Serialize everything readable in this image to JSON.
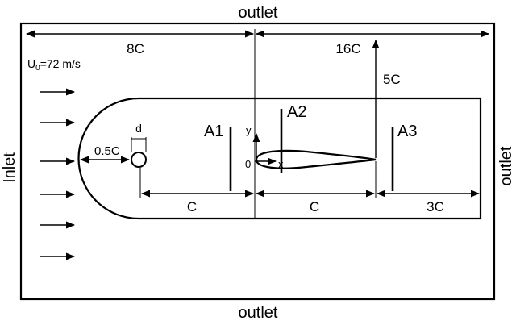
{
  "labels": {
    "outlet_top": "outlet",
    "outlet_bottom": "outlet",
    "outlet_right": "outlet",
    "inlet": "Inlet",
    "velocity_u": "U",
    "velocity_sub": "0",
    "velocity_rest": "=72 m/s",
    "dim_8c": "8C",
    "dim_16c": "16C",
    "dim_5c": "5C",
    "dim_05c": "0.5C",
    "dim_d": "d",
    "dim_c1": "C",
    "dim_c2": "C",
    "dim_3c": "3C",
    "axis_y": "y",
    "axis_x": "x",
    "origin": "0",
    "probe_a1": "A1",
    "probe_a2": "A2",
    "probe_a3": "A3"
  },
  "colors": {
    "stroke": "#000000",
    "background": "#ffffff"
  }
}
